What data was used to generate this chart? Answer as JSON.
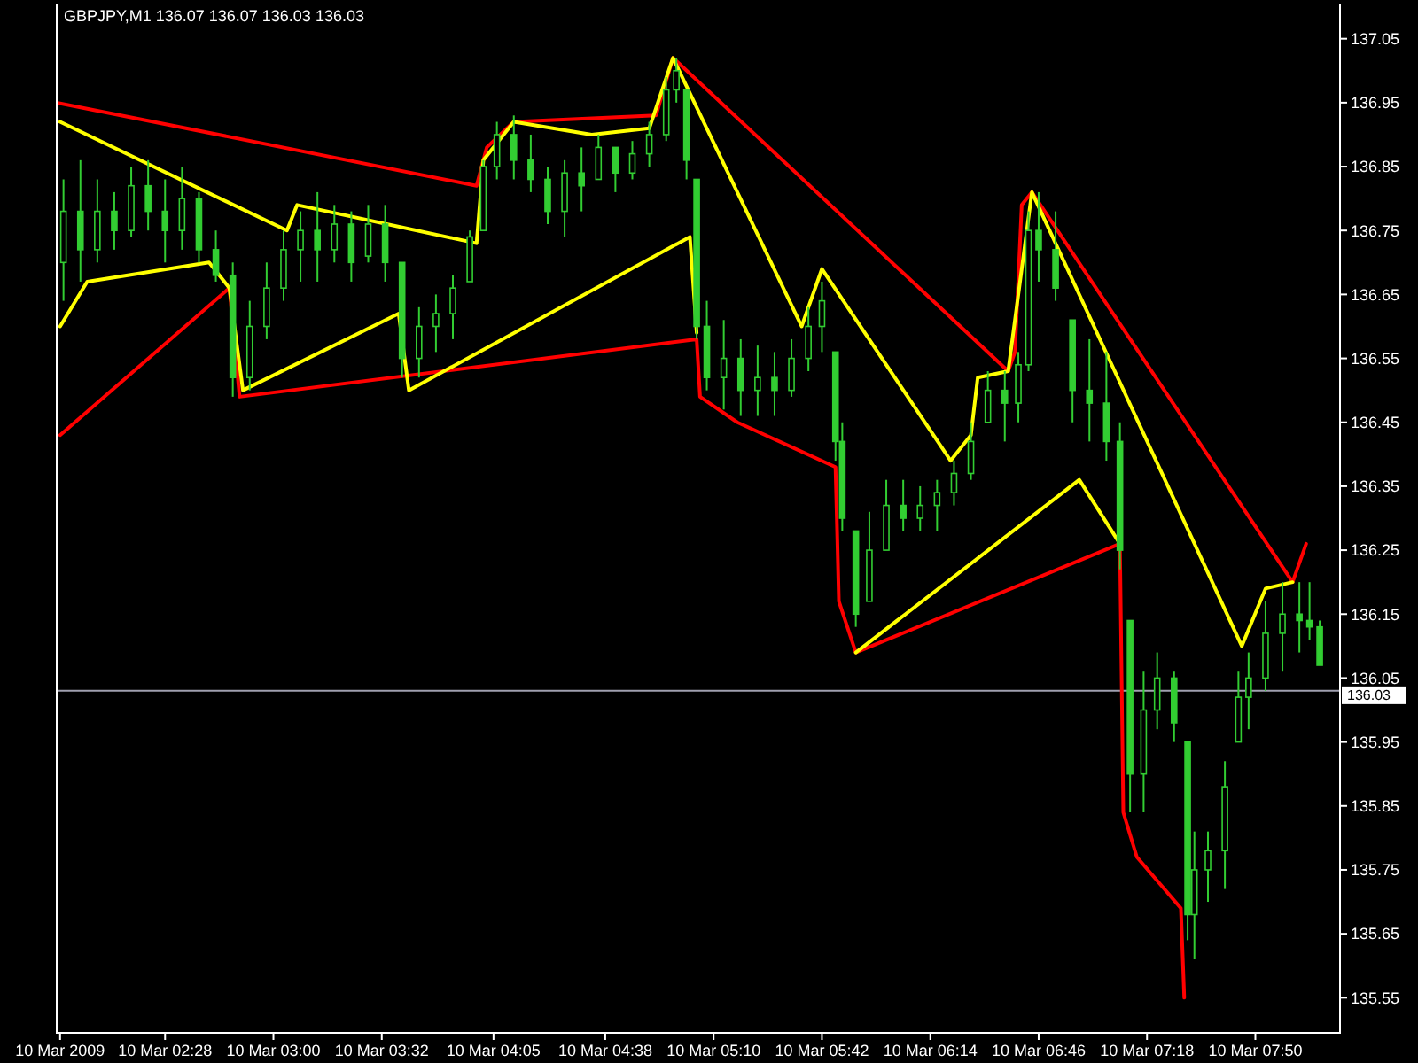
{
  "chart_data": {
    "type": "candlestick",
    "title": "GBPJPY,M1  136.07 136.07 136.03 136.03",
    "color": "#32cd32",
    "x": [
      "2009-03-10T01:58",
      "2009-03-10T02:03",
      "2009-03-10T02:08",
      "2009-03-10T02:13",
      "2009-03-10T02:18",
      "2009-03-10T02:23",
      "2009-03-10T02:28",
      "2009-03-10T02:33",
      "2009-03-10T02:38",
      "2009-03-10T02:43",
      "2009-03-10T02:48",
      "2009-03-10T02:53",
      "2009-03-10T02:58",
      "2009-03-10T03:03",
      "2009-03-10T03:08",
      "2009-03-10T03:13",
      "2009-03-10T03:18",
      "2009-03-10T03:23",
      "2009-03-10T03:28",
      "2009-03-10T03:33",
      "2009-03-10T03:38",
      "2009-03-10T03:43",
      "2009-03-10T03:48",
      "2009-03-10T03:53",
      "2009-03-10T03:58",
      "2009-03-10T04:02",
      "2009-03-10T04:06",
      "2009-03-10T04:11",
      "2009-03-10T04:16",
      "2009-03-10T04:21",
      "2009-03-10T04:26",
      "2009-03-10T04:31",
      "2009-03-10T04:36",
      "2009-03-10T04:41",
      "2009-03-10T04:46",
      "2009-03-10T04:51",
      "2009-03-10T04:56",
      "2009-03-10T04:59",
      "2009-03-10T05:02",
      "2009-03-10T05:05",
      "2009-03-10T05:08",
      "2009-03-10T05:13",
      "2009-03-10T05:18",
      "2009-03-10T05:23",
      "2009-03-10T05:28",
      "2009-03-10T05:33",
      "2009-03-10T05:38",
      "2009-03-10T05:42",
      "2009-03-10T05:46",
      "2009-03-10T05:48",
      "2009-03-10T05:52",
      "2009-03-10T05:56",
      "2009-03-10T06:01",
      "2009-03-10T06:06",
      "2009-03-10T06:11",
      "2009-03-10T06:16",
      "2009-03-10T06:21",
      "2009-03-10T06:26",
      "2009-03-10T06:31",
      "2009-03-10T06:36",
      "2009-03-10T06:40",
      "2009-03-10T06:43",
      "2009-03-10T06:46",
      "2009-03-10T06:51",
      "2009-03-10T06:56",
      "2009-03-10T07:01",
      "2009-03-10T07:06",
      "2009-03-10T07:10",
      "2009-03-10T07:13",
      "2009-03-10T07:17",
      "2009-03-10T07:21",
      "2009-03-10T07:26",
      "2009-03-10T07:30",
      "2009-03-10T07:32",
      "2009-03-10T07:36",
      "2009-03-10T07:41",
      "2009-03-10T07:45",
      "2009-03-10T07:48",
      "2009-03-10T07:53",
      "2009-03-10T07:58",
      "2009-03-10T08:03",
      "2009-03-10T08:06",
      "2009-03-10T08:09"
    ],
    "ohlc": [
      [
        136.7,
        136.83,
        136.64,
        136.78
      ],
      [
        136.78,
        136.86,
        136.67,
        136.72
      ],
      [
        136.72,
        136.83,
        136.7,
        136.78
      ],
      [
        136.78,
        136.81,
        136.72,
        136.75
      ],
      [
        136.75,
        136.85,
        136.74,
        136.82
      ],
      [
        136.82,
        136.86,
        136.75,
        136.78
      ],
      [
        136.78,
        136.83,
        136.7,
        136.75
      ],
      [
        136.75,
        136.85,
        136.72,
        136.8
      ],
      [
        136.8,
        136.81,
        136.7,
        136.72
      ],
      [
        136.72,
        136.75,
        136.67,
        136.68
      ],
      [
        136.68,
        136.7,
        136.49,
        136.52
      ],
      [
        136.52,
        136.64,
        136.5,
        136.6
      ],
      [
        136.6,
        136.7,
        136.58,
        136.66
      ],
      [
        136.66,
        136.75,
        136.64,
        136.72
      ],
      [
        136.72,
        136.78,
        136.67,
        136.75
      ],
      [
        136.75,
        136.81,
        136.67,
        136.72
      ],
      [
        136.72,
        136.79,
        136.7,
        136.76
      ],
      [
        136.76,
        136.78,
        136.67,
        136.7
      ],
      [
        136.71,
        136.79,
        136.7,
        136.76
      ],
      [
        136.76,
        136.79,
        136.67,
        136.7
      ],
      [
        136.7,
        136.7,
        136.52,
        136.55
      ],
      [
        136.55,
        136.63,
        136.52,
        136.6
      ],
      [
        136.6,
        136.65,
        136.56,
        136.62
      ],
      [
        136.62,
        136.68,
        136.58,
        136.66
      ],
      [
        136.67,
        136.75,
        136.67,
        136.74
      ],
      [
        136.75,
        136.86,
        136.75,
        136.85
      ],
      [
        136.85,
        136.92,
        136.83,
        136.9
      ],
      [
        136.9,
        136.93,
        136.83,
        136.86
      ],
      [
        136.86,
        136.9,
        136.81,
        136.83
      ],
      [
        136.83,
        136.85,
        136.76,
        136.78
      ],
      [
        136.78,
        136.86,
        136.74,
        136.84
      ],
      [
        136.84,
        136.88,
        136.78,
        136.82
      ],
      [
        136.83,
        136.9,
        136.83,
        136.88
      ],
      [
        136.88,
        136.88,
        136.81,
        136.84
      ],
      [
        136.84,
        136.89,
        136.83,
        136.87
      ],
      [
        136.87,
        136.92,
        136.85,
        136.9
      ],
      [
        136.9,
        136.99,
        136.89,
        136.97
      ],
      [
        136.97,
        137.02,
        136.95,
        137.0
      ],
      [
        136.97,
        136.97,
        136.83,
        136.86
      ],
      [
        136.83,
        136.83,
        136.58,
        136.6
      ],
      [
        136.6,
        136.64,
        136.5,
        136.52
      ],
      [
        136.52,
        136.61,
        136.47,
        136.55
      ],
      [
        136.55,
        136.58,
        136.46,
        136.5
      ],
      [
        136.5,
        136.57,
        136.46,
        136.52
      ],
      [
        136.52,
        136.56,
        136.46,
        136.5
      ],
      [
        136.5,
        136.58,
        136.49,
        136.55
      ],
      [
        136.55,
        136.63,
        136.53,
        136.6
      ],
      [
        136.6,
        136.67,
        136.56,
        136.64
      ],
      [
        136.56,
        136.56,
        136.39,
        136.42
      ],
      [
        136.42,
        136.45,
        136.28,
        136.3
      ],
      [
        136.28,
        136.28,
        136.13,
        136.15
      ],
      [
        136.17,
        136.31,
        136.17,
        136.25
      ],
      [
        136.25,
        136.36,
        136.25,
        136.32
      ],
      [
        136.32,
        136.36,
        136.28,
        136.3
      ],
      [
        136.3,
        136.35,
        136.28,
        136.32
      ],
      [
        136.32,
        136.36,
        136.28,
        136.34
      ],
      [
        136.34,
        136.39,
        136.32,
        136.37
      ],
      [
        136.37,
        136.45,
        136.36,
        136.42
      ],
      [
        136.45,
        136.53,
        136.45,
        136.5
      ],
      [
        136.5,
        136.53,
        136.42,
        136.48
      ],
      [
        136.48,
        136.56,
        136.45,
        136.54
      ],
      [
        136.54,
        136.78,
        136.53,
        136.75
      ],
      [
        136.75,
        136.81,
        136.67,
        136.72
      ],
      [
        136.72,
        136.78,
        136.64,
        136.66
      ],
      [
        136.61,
        136.61,
        136.45,
        136.5
      ],
      [
        136.5,
        136.58,
        136.42,
        136.48
      ],
      [
        136.48,
        136.56,
        136.39,
        136.42
      ],
      [
        136.42,
        136.45,
        136.22,
        136.25
      ],
      [
        136.14,
        136.14,
        135.84,
        135.9
      ],
      [
        135.9,
        136.06,
        135.84,
        136.0
      ],
      [
        136.0,
        136.09,
        135.97,
        136.05
      ],
      [
        136.05,
        136.06,
        135.95,
        135.98
      ],
      [
        135.95,
        135.95,
        135.64,
        135.68
      ],
      [
        135.68,
        135.81,
        135.61,
        135.75
      ],
      [
        135.75,
        135.81,
        135.7,
        135.78
      ],
      [
        135.78,
        135.92,
        135.72,
        135.88
      ],
      [
        135.95,
        136.06,
        135.95,
        136.02
      ],
      [
        136.02,
        136.09,
        135.97,
        136.05
      ],
      [
        136.05,
        136.17,
        136.03,
        136.12
      ],
      [
        136.12,
        136.2,
        136.06,
        136.15
      ],
      [
        136.15,
        136.2,
        136.09,
        136.14
      ],
      [
        136.14,
        136.2,
        136.11,
        136.13
      ],
      [
        136.13,
        136.14,
        136.07,
        136.07
      ]
    ],
    "series": [
      {
        "type": "line",
        "color": "#ff0000",
        "x": [
          "2009-03-10T01:56",
          "2009-03-10T04:00",
          "2009-03-10T04:03",
          "2009-03-10T04:11",
          "2009-03-10T04:53",
          "2009-03-10T04:58",
          "2009-03-10T06:37",
          "2009-03-10T06:39",
          "2009-03-10T06:41",
          "2009-03-10T06:44",
          "2009-03-10T08:01",
          "2009-03-10T08:05"
        ],
        "values": [
          136.95,
          136.82,
          136.88,
          136.92,
          136.93,
          137.02,
          136.53,
          136.56,
          136.79,
          136.81,
          136.2,
          136.26
        ]
      },
      {
        "type": "line",
        "color": "#ff0000",
        "x": [
          "2009-03-10T01:57",
          "2009-03-10T02:47",
          "2009-03-10T02:50",
          "2009-03-10T05:05",
          "2009-03-10T05:06",
          "2009-03-10T05:17",
          "2009-03-10T05:46",
          "2009-03-10T05:47",
          "2009-03-10T05:52",
          "2009-03-10T07:10",
          "2009-03-10T07:11",
          "2009-03-10T07:15",
          "2009-03-10T07:28",
          "2009-03-10T07:29"
        ],
        "values": [
          136.43,
          136.66,
          136.49,
          136.58,
          136.49,
          136.45,
          136.38,
          136.17,
          136.09,
          136.26,
          135.84,
          135.77,
          135.69,
          135.55
        ]
      },
      {
        "type": "line",
        "color": "#ffff00",
        "x": [
          "2009-03-10T01:57",
          "2009-03-10T03:04",
          "2009-03-10T03:07",
          "2009-03-10T04:00",
          "2009-03-10T04:02",
          "2009-03-10T04:11",
          "2009-03-10T04:34",
          "2009-03-10T04:51",
          "2009-03-10T04:58",
          "2009-03-10T05:36",
          "2009-03-10T05:42",
          "2009-03-10T06:20",
          "2009-03-10T06:26",
          "2009-03-10T06:28",
          "2009-03-10T06:37",
          "2009-03-10T06:44",
          "2009-03-10T07:46",
          "2009-03-10T07:53",
          "2009-03-10T08:01"
        ],
        "values": [
          136.92,
          136.75,
          136.79,
          136.73,
          136.86,
          136.92,
          136.9,
          136.91,
          137.02,
          136.6,
          136.69,
          136.39,
          136.43,
          136.52,
          136.53,
          136.81,
          136.1,
          136.19,
          136.2
        ]
      },
      {
        "type": "line",
        "color": "#ffff00",
        "x": [
          "2009-03-10T01:57",
          "2009-03-10T02:05",
          "2009-03-10T02:41",
          "2009-03-10T02:47",
          "2009-03-10T02:51",
          "2009-03-10T03:37",
          "2009-03-10T03:40",
          "2009-03-10T05:03",
          "2009-03-10T05:05",
          "2009-03-10T05:30",
          "2009-03-10T05:52",
          "2009-03-10T06:58",
          "2009-03-10T07:10"
        ],
        "values": [
          136.6,
          136.67,
          136.7,
          136.66,
          136.5,
          136.62,
          136.5,
          136.74,
          136.59,
          null,
          136.09,
          136.36,
          136.26
        ]
      }
    ],
    "xlim": [
      "2009-03-10T01:56",
      "2009-03-10T08:15"
    ],
    "ylim": [
      135.495,
      137.105
    ],
    "xticks": [
      {
        "value": "2009-03-10T01:57",
        "label": "10 Mar 2009"
      },
      {
        "value": "2009-03-10T02:28",
        "label": "10 Mar 02:28"
      },
      {
        "value": "2009-03-10T03:00",
        "label": "10 Mar 03:00"
      },
      {
        "value": "2009-03-10T03:32",
        "label": "10 Mar 03:32"
      },
      {
        "value": "2009-03-10T04:05",
        "label": "10 Mar 04:05"
      },
      {
        "value": "2009-03-10T04:38",
        "label": "10 Mar 04:38"
      },
      {
        "value": "2009-03-10T05:10",
        "label": "10 Mar 05:10"
      },
      {
        "value": "2009-03-10T05:42",
        "label": "10 Mar 05:42"
      },
      {
        "value": "2009-03-10T06:14",
        "label": "10 Mar 06:14"
      },
      {
        "value": "2009-03-10T06:46",
        "label": "10 Mar 06:46"
      },
      {
        "value": "2009-03-10T07:18",
        "label": "10 Mar 07:18"
      },
      {
        "value": "2009-03-10T07:50",
        "label": "10 Mar 07:50"
      }
    ],
    "yticks": [
      135.55,
      135.65,
      135.75,
      135.85,
      135.95,
      136.05,
      136.15,
      136.25,
      136.35,
      136.45,
      136.55,
      136.65,
      136.75,
      136.85,
      136.95,
      137.05
    ],
    "ref_lines": [
      {
        "axis": "y",
        "value": 136.03,
        "label": "136.03",
        "color": "#a0a0b0"
      }
    ]
  }
}
